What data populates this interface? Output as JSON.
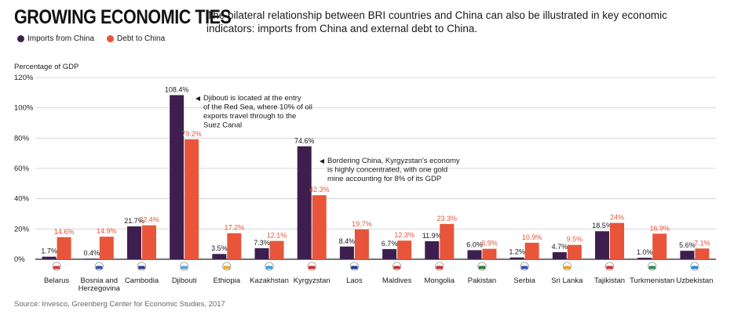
{
  "header": {
    "title": "GROWING ECONOMIC TIES",
    "subtitle": "The bilateral relationship between BRI countries and China can also be illustrated in key economic indicators: imports from China and external debt to China."
  },
  "legend": {
    "items": [
      {
        "label": "Imports from China",
        "color": "#3d1f4f"
      },
      {
        "label": "Debt to China",
        "color": "#e8553a"
      }
    ]
  },
  "source": "Source: Invesco, Greenberg Center for Economic Studies, 2017",
  "annotations": [
    {
      "country": "Djibouti",
      "text": [
        "Djibouti is located at the entry",
        "of the Red Sea, where 10% of oil",
        "exports travel through to the",
        "Suez Canal"
      ]
    },
    {
      "country": "Kyrgyzstan",
      "text": [
        "Bordering China, Kyrgyzstan's economy",
        "is highly concentrated, with one gold",
        "mine accounting for 8% of its GDP"
      ]
    }
  ],
  "chart_data": {
    "type": "bar",
    "ylabel": "Percentage of GDP",
    "ylim": [
      0,
      120
    ],
    "yticks": [
      "0%",
      "20%",
      "40%",
      "60%",
      "80%",
      "100%",
      "120%"
    ],
    "grid": true,
    "categories": [
      "Belarus",
      "Bosnia and Herzegovina",
      "Cambodia",
      "Djibouti",
      "Ethiopia",
      "Kazakhstan",
      "Kyrgyzstan",
      "Laos",
      "Maldives",
      "Mongolia",
      "Pakistan",
      "Serbia",
      "Sri Lanka",
      "Tajikistan",
      "Turkmenistan",
      "Uzbekistan"
    ],
    "series": [
      {
        "name": "Imports from China",
        "color": "#3d1f4f",
        "values": [
          1.7,
          0.4,
          21.7,
          108.4,
          3.5,
          7.3,
          74.6,
          8.4,
          6.7,
          11.9,
          6.0,
          1.2,
          4.7,
          18.5,
          1.0,
          5.6
        ],
        "labels": [
          "1.7%",
          "0.4%",
          "21.7%",
          "108.4%",
          "3.5%",
          "7.3%",
          "74.6%",
          "8.4%",
          "6.7%",
          "11.9%",
          "6.0%",
          "1.2%",
          "4.7%",
          "18.5%",
          "1.0%",
          "5.6%"
        ]
      },
      {
        "name": "Debt to China",
        "color": "#e8553a",
        "values": [
          14.6,
          14.9,
          22.4,
          79.2,
          17.2,
          12.1,
          42.3,
          19.7,
          12.3,
          23.3,
          6.9,
          10.9,
          9.5,
          24,
          16.9,
          7.1
        ],
        "labels": [
          "14.6%",
          "14.9%",
          "22.4%",
          "79.2%",
          "17.2%",
          "12.1%",
          "42.3%",
          "19.7%",
          "12.3%",
          "23.3%",
          "6.9%",
          "10.9%",
          "9.5%",
          "24%",
          "16.9%",
          "7.1%"
        ]
      }
    ]
  }
}
